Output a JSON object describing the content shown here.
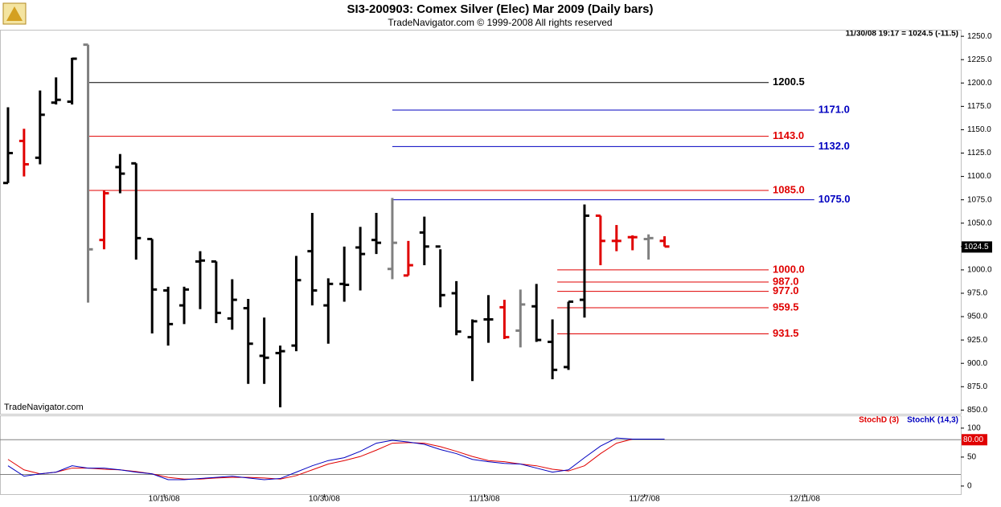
{
  "chart_data": [
    {
      "type": "ohlc",
      "title": "SI3-200903:  Comex Silver (Elec) Mar 2009  (Daily bars)",
      "subtitle": "TradeNavigator.com © 1999-2008 All rights reserved",
      "status": "11/30/08 19:17 = 1024.5 (-11.5)",
      "watermark": "TradeNavigator.com",
      "open": [
        1093,
        1138,
        1120,
        1179,
        1180,
        1241,
        1032,
        1110,
        1114,
        1033,
        978,
        962,
        1009,
        1009,
        948,
        959,
        908,
        911,
        919,
        1020,
        962,
        985,
        1024,
        1032,
        1001,
        994,
        1040,
        1025,
        975,
        928,
        947,
        960,
        935,
        961,
        923,
        896,
        968,
        1058,
        1031,
        1035,
        1033,
        1031
      ],
      "high": [
        1174,
        1151,
        1192,
        1206,
        1227,
        1241,
        1085,
        1124,
        1114,
        1033,
        982,
        982,
        1020,
        1009,
        990,
        969,
        949,
        919,
        1015,
        1061,
        991,
        1025,
        1046,
        1061,
        1077,
        1031,
        1057,
        1022,
        988,
        947,
        973,
        968,
        979,
        985,
        947,
        966,
        1070,
        1058,
        1048,
        1037,
        1038,
        1036
      ],
      "low": [
        1093,
        1100,
        1113,
        1177,
        1177,
        965,
        1022,
        1082,
        1011,
        932,
        919,
        942,
        958,
        943,
        936,
        878,
        878,
        853,
        913,
        962,
        921,
        966,
        978,
        1017,
        990,
        994,
        1005,
        960,
        930,
        881,
        922,
        926,
        917,
        923,
        883,
        893,
        949,
        1005,
        1020,
        1021,
        1011,
        1025
      ],
      "close": [
        1125,
        1113,
        1166,
        1182,
        1226,
        1022,
        1082,
        1103,
        1034,
        979,
        942,
        979,
        1010,
        954,
        968,
        921,
        906,
        913,
        989,
        978,
        985,
        984,
        1017,
        1029,
        1029,
        1005,
        1025,
        973,
        934,
        945,
        947,
        928,
        963,
        925,
        893,
        966,
        1058,
        1031,
        1031,
        1035,
        1034,
        1025
      ],
      "colors": [
        "#000",
        "#e00000",
        "#000",
        "#000",
        "#000",
        "#808080",
        "#e00000",
        "#000",
        "#000",
        "#000",
        "#000",
        "#000",
        "#000",
        "#000",
        "#000",
        "#000",
        "#000",
        "#000",
        "#000",
        "#000",
        "#000",
        "#000",
        "#000",
        "#000",
        "#808080",
        "#e00000",
        "#000",
        "#000",
        "#000",
        "#000",
        "#000",
        "#e00000",
        "#808080",
        "#000",
        "#000",
        "#000",
        "#000",
        "#e00000",
        "#e00000",
        "#e00000",
        "#808080",
        "#e00000"
      ],
      "levels": [
        {
          "value": 1200.5,
          "color": "#000000",
          "x_range": [
            5,
            47.5
          ]
        },
        {
          "value": 1171,
          "label": "1171.0",
          "color": "#0000c0",
          "x_range": [
            24,
            50.35
          ]
        },
        {
          "value": 1143,
          "label": "1143.0",
          "color": "#e00000",
          "x_range": [
            5,
            47.5
          ]
        },
        {
          "value": 1132,
          "label": "1132.0",
          "color": "#0000c0",
          "x_range": [
            24,
            50.35
          ]
        },
        {
          "value": 1085,
          "label": "1085.0",
          "color": "#e00000",
          "x_range": [
            5,
            47.5
          ]
        },
        {
          "value": 1075,
          "label": "1075.0",
          "color": "#0000c0",
          "x_range": [
            24,
            50.35
          ]
        },
        {
          "value": 1000,
          "label": "1000.0",
          "color": "#e00000",
          "x_range": [
            34.3,
            47.5
          ]
        },
        {
          "value": 987,
          "label": "987.0",
          "color": "#e00000",
          "x_range": [
            34.3,
            47.5
          ]
        },
        {
          "value": 977,
          "label": "977.0",
          "color": "#e00000",
          "x_range": [
            34.3,
            47.5
          ]
        },
        {
          "value": 959.5,
          "color": "#e00000",
          "x_range": [
            34.3,
            47.5
          ]
        },
        {
          "value": 931.5,
          "color": "#e00000",
          "x_range": [
            34.3,
            47.5
          ]
        }
      ],
      "last_price": 1024.5,
      "xlim": [
        -0.5,
        59.5
      ],
      "ylim": [
        846,
        1257
      ],
      "yticks": [
        {
          "value": 850,
          "label": "850.0"
        },
        {
          "value": 875,
          "label": "875.0"
        },
        {
          "value": 900,
          "label": "900.0"
        },
        {
          "value": 925,
          "label": "925.0"
        },
        {
          "value": 950,
          "label": "950.0"
        },
        {
          "value": 975,
          "label": "975.0"
        },
        {
          "value": 1000,
          "label": "1000.0"
        },
        {
          "value": 1025,
          "label": "1025.0"
        },
        {
          "value": 1050,
          "label": "1050.0"
        },
        {
          "value": 1075,
          "label": "1075.0"
        },
        {
          "value": 1100,
          "label": "1100.0"
        },
        {
          "value": 1125,
          "label": "1125.0"
        },
        {
          "value": 1150,
          "label": "1150.0"
        },
        {
          "value": 1175,
          "label": "1175.0"
        },
        {
          "value": 1200,
          "label": "1200.0"
        },
        {
          "value": 1225,
          "label": "1225.0"
        },
        {
          "value": 1250,
          "label": "1250.0"
        }
      ]
    },
    {
      "type": "line",
      "series": [
        {
          "name": "StochD (3)",
          "color": "#e00000",
          "values": [
            46,
            28,
            21,
            24,
            31,
            31,
            29,
            28,
            25,
            21,
            15,
            12,
            12,
            14,
            15,
            15,
            14,
            12,
            18,
            28,
            38,
            44,
            51,
            62,
            74,
            75,
            74,
            68,
            60,
            51,
            44,
            42,
            38,
            35,
            29,
            26,
            35,
            56,
            74,
            81,
            81,
            81
          ]
        },
        {
          "name": "StochK (14,3)",
          "color": "#0000c0",
          "values": [
            35,
            17,
            21,
            24,
            35,
            31,
            31,
            28,
            24,
            21,
            11,
            11,
            13,
            15,
            17,
            14,
            11,
            13,
            24,
            35,
            44,
            49,
            60,
            74,
            79,
            76,
            72,
            63,
            56,
            46,
            42,
            39,
            38,
            31,
            24,
            28,
            49,
            69,
            83,
            81,
            81,
            81
          ]
        }
      ],
      "levels": [
        20,
        80
      ],
      "level_label": {
        "value": 80,
        "label": "80.00"
      },
      "xlim": [
        -0.5,
        59.5
      ],
      "xticks": [
        {
          "value": 9.75,
          "label": "10/16/08"
        },
        {
          "value": 19.75,
          "label": "10/30/08"
        },
        {
          "value": 29.75,
          "label": "11/13/08"
        },
        {
          "value": 39.75,
          "label": "11/27/08"
        },
        {
          "value": 49.75,
          "label": "12/11/08"
        }
      ],
      "ylim": [
        -14,
        122
      ],
      "yticks": [
        0,
        50,
        100
      ]
    }
  ]
}
